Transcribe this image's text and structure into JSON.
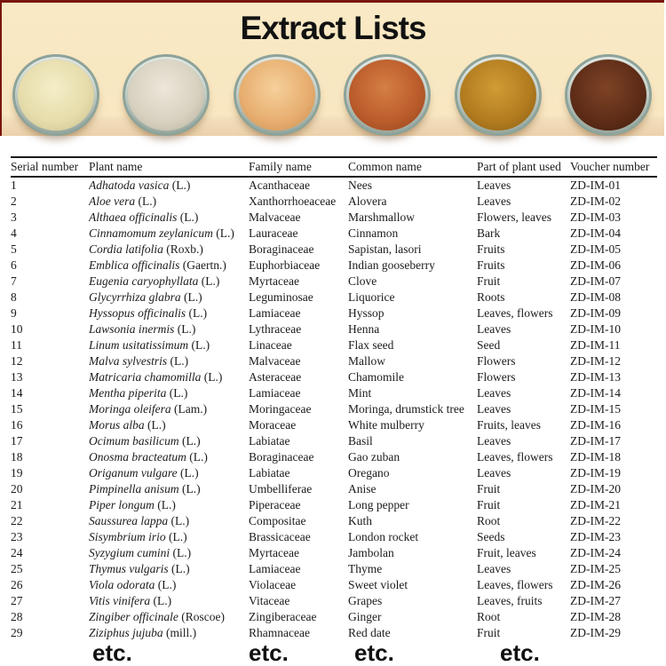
{
  "header": {
    "title": "Extract Lists",
    "background_color": "#f8e7c1",
    "bottom_strip_color": "#ecd2ab",
    "border_color": "#7a150e",
    "glass_rim_color": "#8da39a",
    "bowls": [
      {
        "name": "pale-cream-extract-powder",
        "c1": "#f4eec8",
        "c2": "#e6dcab",
        "c3": "#cbbf8e"
      },
      {
        "name": "off-white-extract-powder",
        "c1": "#ece7da",
        "c2": "#d8d1c0",
        "c3": "#b8b09d"
      },
      {
        "name": "light-tan-extract-powder",
        "c1": "#f6d09c",
        "c2": "#e7ae6f",
        "c3": "#ca8f52"
      },
      {
        "name": "terracotta-extract-powder",
        "c1": "#d57e45",
        "c2": "#ba5c2b",
        "c3": "#944621"
      },
      {
        "name": "golden-ochre-extract-powder",
        "c1": "#d09c34",
        "c2": "#b27c1f",
        "c3": "#8a5d13"
      },
      {
        "name": "dark-brown-extract-powder",
        "c1": "#7e4326",
        "c2": "#5e2c17",
        "c3": "#421e0e"
      }
    ]
  },
  "table": {
    "columns": [
      "Serial number",
      "Plant name",
      "Family name",
      "Common name",
      "Part of plant used",
      "Voucher number"
    ],
    "etc_label": "etc.",
    "rows": [
      {
        "serial": "1",
        "plant_italic": "Adhatoda vasica",
        "plant_suffix": " (L.)",
        "family": "Acanthaceae",
        "common": "Nees",
        "part": "Leaves",
        "voucher": "ZD-IM-01"
      },
      {
        "serial": "2",
        "plant_italic": "Aloe vera",
        "plant_suffix": " (L.)",
        "family": "Xanthorrhoeaceae",
        "common": "Alovera",
        "part": "Leaves",
        "voucher": "ZD-IM-02"
      },
      {
        "serial": "3",
        "plant_italic": "Althaea officinalis",
        "plant_suffix": " (L.)",
        "family": "Malvaceae",
        "common": "Marshmallow",
        "part": "Flowers, leaves",
        "voucher": "ZD-IM-03"
      },
      {
        "serial": "4",
        "plant_italic": "Cinnamomum zeylanicum",
        "plant_suffix": " (L.)",
        "family": "Lauraceae",
        "common": "Cinnamon",
        "part": "Bark",
        "voucher": "ZD-IM-04"
      },
      {
        "serial": "5",
        "plant_italic": "Cordia latifolia",
        "plant_suffix": " (Roxb.)",
        "family": "Boraginaceae",
        "common": "Sapistan, lasori",
        "part": "Fruits",
        "voucher": "ZD-IM-05"
      },
      {
        "serial": "6",
        "plant_italic": "Emblica officinalis",
        "plant_suffix": " (Gaertn.)",
        "family": "Euphorbiaceae",
        "common": "Indian gooseberry",
        "part": "Fruits",
        "voucher": "ZD-IM-06"
      },
      {
        "serial": "7",
        "plant_italic": "Eugenia caryophyllata",
        "plant_suffix": " (L.)",
        "family": "Myrtaceae",
        "common": "Clove",
        "part": "Fruit",
        "voucher": "ZD-IM-07"
      },
      {
        "serial": "8",
        "plant_italic": "Glycyrrhiza glabra",
        "plant_suffix": " (L.)",
        "family": "Leguminosae",
        "common": "Liquorice",
        "part": "Roots",
        "voucher": "ZD-IM-08"
      },
      {
        "serial": "9",
        "plant_italic": "Hyssopus officinalis",
        "plant_suffix": " (L.)",
        "family": "Lamiaceae",
        "common": "Hyssop",
        "part": "Leaves, flowers",
        "voucher": "ZD-IM-09"
      },
      {
        "serial": "10",
        "plant_italic": "Lawsonia inermis",
        "plant_suffix": " (L.)",
        "family": "Lythraceae",
        "common": "Henna",
        "part": "Leaves",
        "voucher": "ZD-IM-10"
      },
      {
        "serial": "11",
        "plant_italic": "Linum usitatissimum",
        "plant_suffix": " (L.)",
        "family": "Linaceae",
        "common": "Flax seed",
        "part": "Seed",
        "voucher": "ZD-IM-11"
      },
      {
        "serial": "12",
        "plant_italic": "Malva sylvestris",
        "plant_suffix": " (L.)",
        "family": "Malvaceae",
        "common": "Mallow",
        "part": "Flowers",
        "voucher": "ZD-IM-12"
      },
      {
        "serial": "13",
        "plant_italic": "Matricaria chamomilla",
        "plant_suffix": " (L.)",
        "family": "Asteraceae",
        "common": "Chamomile",
        "part": "Flowers",
        "voucher": "ZD-IM-13"
      },
      {
        "serial": "14",
        "plant_italic": "Mentha piperita",
        "plant_suffix": " (L.)",
        "family": "Lamiaceae",
        "common": "Mint",
        "part": "Leaves",
        "voucher": "ZD-IM-14"
      },
      {
        "serial": "15",
        "plant_italic": "Moringa oleifera",
        "plant_suffix": " (Lam.)",
        "family": "Moringaceae",
        "common": "Moringa, drumstick tree",
        "part": "Leaves",
        "voucher": "ZD-IM-15"
      },
      {
        "serial": "16",
        "plant_italic": "Morus alba",
        "plant_suffix": " (L.)",
        "family": "Moraceae",
        "common": "White mulberry",
        "part": "Fruits, leaves",
        "voucher": "ZD-IM-16"
      },
      {
        "serial": "17",
        "plant_italic": "Ocimum basilicum",
        "plant_suffix": " (L.)",
        "family": "Labiatae",
        "common": "Basil",
        "part": "Leaves",
        "voucher": "ZD-IM-17"
      },
      {
        "serial": "18",
        "plant_italic": "Onosma bracteatum",
        "plant_suffix": " (L.)",
        "family": "Boraginaceae",
        "common": "Gao zuban",
        "part": "Leaves, flowers",
        "voucher": "ZD-IM-18"
      },
      {
        "serial": "19",
        "plant_italic": "Origanum vulgare",
        "plant_suffix": " (L.)",
        "family": "Labiatae",
        "common": "Oregano",
        "part": "Leaves",
        "voucher": "ZD-IM-19"
      },
      {
        "serial": "20",
        "plant_italic": "Pimpinella anisum",
        "plant_suffix": " (L.)",
        "family": "Umbelliferae",
        "common": "Anise",
        "part": "Fruit",
        "voucher": "ZD-IM-20"
      },
      {
        "serial": "21",
        "plant_italic": "Piper longum",
        "plant_suffix": " (L.)",
        "family": "Piperaceae",
        "common": "Long pepper",
        "part": "Fruit",
        "voucher": "ZD-IM-21"
      },
      {
        "serial": "22",
        "plant_italic": "Saussurea lappa",
        "plant_suffix": " (L.)",
        "family": "Compositae",
        "common": "Kuth",
        "part": "Root",
        "voucher": "ZD-IM-22"
      },
      {
        "serial": "23",
        "plant_italic": "Sisymbrium irio",
        "plant_suffix": " (L.)",
        "family": "Brassicaceae",
        "common": "London rocket",
        "part": "Seeds",
        "voucher": "ZD-IM-23"
      },
      {
        "serial": "24",
        "plant_italic": "Syzygium cumini",
        "plant_suffix": " (L.)",
        "family": "Myrtaceae",
        "common": "Jambolan",
        "part": "Fruit, leaves",
        "voucher": "ZD-IM-24"
      },
      {
        "serial": "25",
        "plant_italic": "Thymus vulgaris",
        "plant_suffix": " (L.)",
        "family": "Lamiaceae",
        "common": "Thyme",
        "part": "Leaves",
        "voucher": "ZD-IM-25"
      },
      {
        "serial": "26",
        "plant_italic": "Viola odorata",
        "plant_suffix": " (L.)",
        "family": "Violaceae",
        "common": "Sweet violet",
        "part": "Leaves, flowers",
        "voucher": "ZD-IM-26"
      },
      {
        "serial": "27",
        "plant_italic": "Vitis vinifera",
        "plant_suffix": " (L.)",
        "family": "Vitaceae",
        "common": "Grapes",
        "part": "Leaves, fruits",
        "voucher": "ZD-IM-27"
      },
      {
        "serial": "28",
        "plant_italic": "Zingiber officinale",
        "plant_suffix": " (Roscoe)",
        "family": "Zingiberaceae",
        "common": "Ginger",
        "part": "Root",
        "voucher": "ZD-IM-28"
      },
      {
        "serial": "29",
        "plant_italic": "Ziziphus jujuba",
        "plant_suffix": " (mill.)",
        "family": "Rhamnaceae",
        "common": "Red date",
        "part": "Fruit",
        "voucher": "ZD-IM-29"
      }
    ]
  }
}
